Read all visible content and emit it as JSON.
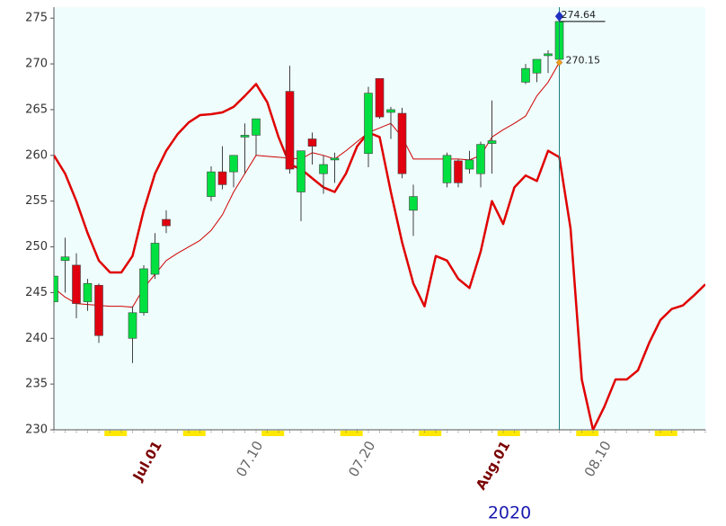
{
  "chart_data": {
    "type": "candlestick",
    "title": "2020",
    "categories": [
      null,
      null,
      null,
      null,
      null,
      null,
      null,
      null,
      null,
      "Jul.01",
      null,
      null,
      null,
      null,
      null,
      null,
      null,
      null,
      "07.10",
      null,
      null,
      null,
      null,
      null,
      null,
      null,
      null,
      null,
      "07.20",
      null,
      null,
      null,
      null,
      null,
      null,
      null,
      null,
      null,
      null,
      null,
      "Aug.01",
      null,
      null,
      null,
      null,
      null,
      null,
      null,
      null,
      "08.10",
      null,
      null,
      null,
      null,
      null,
      null,
      null,
      null,
      null
    ],
    "ylim": [
      230,
      276.2
    ],
    "yticks": [
      230,
      235,
      240,
      245,
      250,
      255,
      260,
      265,
      270,
      275
    ],
    "candles": {
      "up_color": "#00e040",
      "down_color": "#e00010",
      "open": [
        244,
        248.5,
        248,
        244,
        245.8,
        null,
        null,
        240,
        242.8,
        247,
        253,
        null,
        null,
        null,
        255.5,
        258.2,
        258.2,
        262,
        262.2,
        null,
        null,
        267,
        256,
        261.8,
        258,
        259.5,
        null,
        null,
        260.2,
        268.4,
        264.7,
        264.6,
        254,
        null,
        null,
        257,
        259.4,
        258.5,
        258,
        261.3,
        null,
        null,
        268,
        269,
        270.9,
        270.5,
        null,
        null,
        null,
        null,
        null,
        null,
        null,
        null,
        null,
        null,
        null,
        null,
        null
      ],
      "high": [
        246.8,
        251,
        249.3,
        246.5,
        246,
        null,
        null,
        243.5,
        248,
        251.5,
        254,
        null,
        null,
        null,
        258.8,
        261,
        260,
        263.5,
        264,
        null,
        null,
        269.8,
        260.5,
        262.5,
        260,
        260.3,
        null,
        null,
        267.5,
        268.4,
        265.3,
        265.2,
        256.8,
        null,
        null,
        260.3,
        259.6,
        260.5,
        261.5,
        266,
        null,
        null,
        270,
        270.5,
        271.5,
        275.2,
        null,
        null,
        null,
        null,
        null,
        null,
        null,
        null,
        null,
        null,
        null,
        null,
        null
      ],
      "low": [
        243.5,
        245,
        242.2,
        243,
        239.5,
        null,
        null,
        237.3,
        242.5,
        246.5,
        251.5,
        null,
        null,
        null,
        255,
        256.3,
        256.5,
        258,
        260,
        null,
        null,
        258,
        252.8,
        259,
        255.8,
        257,
        null,
        null,
        258.7,
        264,
        261.8,
        257.5,
        251.2,
        null,
        null,
        256.5,
        256.5,
        258,
        256.5,
        258,
        null,
        null,
        267.8,
        268,
        269,
        270,
        null,
        null,
        null,
        null,
        null,
        null,
        null,
        null,
        null,
        null,
        null,
        null,
        null
      ],
      "close": [
        246.8,
        248.9,
        243.8,
        246,
        240.3,
        null,
        null,
        242.8,
        247.6,
        250.4,
        252.3,
        null,
        null,
        null,
        258.2,
        256.8,
        260,
        262.2,
        264,
        null,
        null,
        258.5,
        260.5,
        261,
        259,
        259.7,
        null,
        null,
        266.8,
        264.2,
        265,
        258,
        255.5,
        null,
        null,
        260,
        257,
        259.5,
        261.2,
        261.6,
        null,
        null,
        269.5,
        270.5,
        271.1,
        274.64,
        null,
        null,
        null,
        null,
        null,
        null,
        null,
        null,
        null,
        null,
        null,
        null,
        null
      ]
    },
    "lines": [
      {
        "color": "#e00000",
        "width": 2.5,
        "values": [
          260,
          258,
          255,
          251.5,
          248.5,
          247.2,
          247.2,
          249,
          254,
          258,
          260.5,
          262.3,
          263.6,
          264.4,
          264.5,
          264.7,
          265.3,
          266.5,
          267.8,
          265.8,
          262,
          259,
          258.5,
          257.5,
          256.5,
          256,
          258,
          261,
          262.5,
          262,
          256,
          250.5,
          246,
          243.5,
          249,
          248.5,
          246.5,
          245.5,
          249.5,
          255,
          252.5,
          256.5,
          257.8,
          257.2,
          260.5,
          259.8,
          252,
          235.5,
          230,
          232.5,
          235.5,
          235.5,
          236.5,
          239.5,
          242,
          243.2,
          243.6,
          244.7,
          245.9
        ]
      },
      {
        "color": "#d00000",
        "width": 1,
        "values": [
          245.5,
          244.5,
          243.8,
          243.7,
          243.6,
          243.5,
          243.5,
          243.4,
          245.5,
          247,
          248.5,
          249.3,
          250,
          250.7,
          251.8,
          253.5,
          256,
          258,
          260,
          259.9,
          259.8,
          259.7,
          259.6,
          260.3,
          260,
          259.6,
          260.5,
          261.5,
          262.5,
          263,
          263.5,
          262,
          259.6,
          259.6,
          259.6,
          259.6,
          259.6,
          259.5,
          260,
          262,
          262.8,
          263.5,
          264.3,
          266.5,
          268,
          270.15,
          null,
          null,
          null,
          null,
          null,
          null,
          null,
          null,
          null,
          null,
          null,
          null,
          null
        ]
      }
    ]
  }
}
